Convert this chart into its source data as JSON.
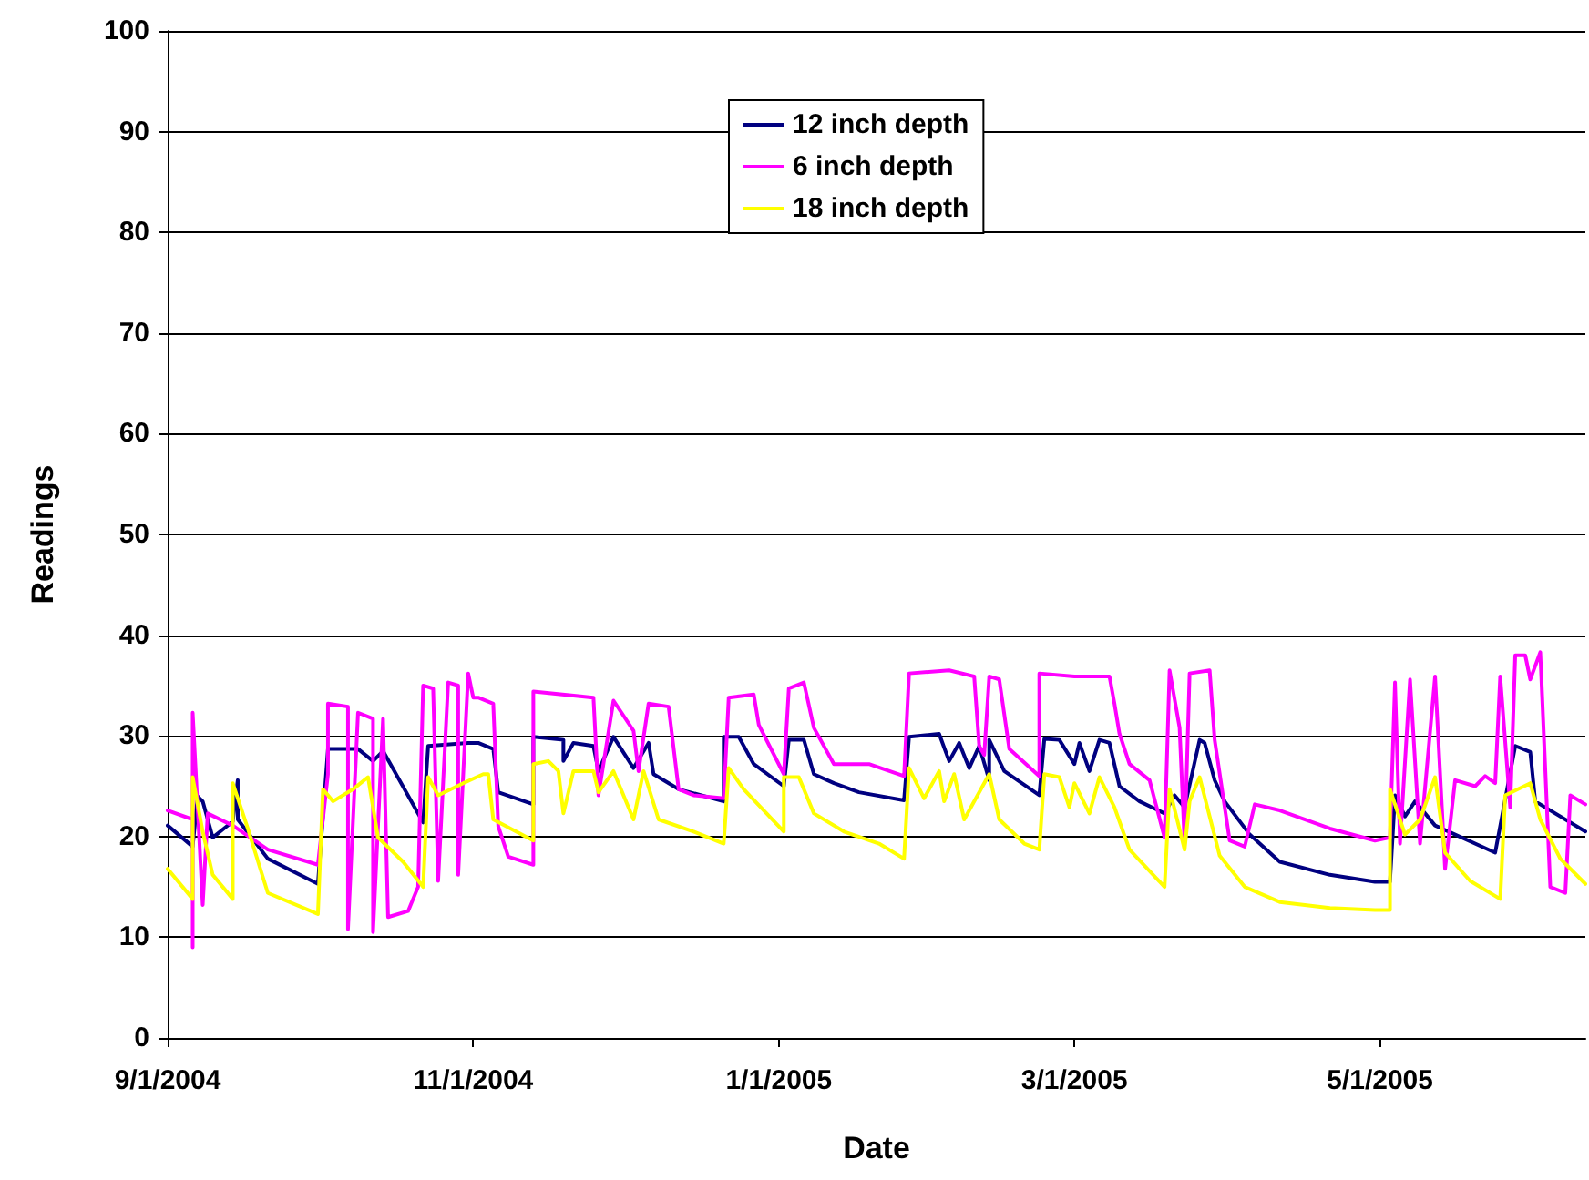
{
  "chart_data": {
    "type": "line",
    "xlabel": "Date",
    "ylabel": "Readings",
    "xlim": [
      "2004-09-01",
      "2005-06-11"
    ],
    "xticks": [
      {
        "value": "2004-09-01",
        "label": "9/1/2004"
      },
      {
        "value": "2004-11-01",
        "label": "11/1/2004"
      },
      {
        "value": "2005-01-01",
        "label": "1/1/2005"
      },
      {
        "value": "2005-03-01",
        "label": "3/1/2005"
      },
      {
        "value": "2005-05-01",
        "label": "5/1/2005"
      }
    ],
    "ylim": [
      0,
      100
    ],
    "yticks": [
      0,
      10,
      20,
      30,
      40,
      50,
      60,
      70,
      80,
      90,
      100
    ],
    "grid": "y",
    "legend": "top",
    "marker": "none",
    "line_style": "solid",
    "series": [
      {
        "name": "12 inch depth",
        "color": "#000080",
        "x": [
          "2004-09-01",
          "2004-09-06",
          "2004-09-07",
          "2004-09-08",
          "2004-09-10",
          "2004-09-14",
          "2004-09-15",
          "2004-09-15",
          "2004-09-21",
          "2004-10-01",
          "2004-10-03",
          "2004-10-09",
          "2004-10-12",
          "2004-10-14",
          "2004-10-22",
          "2004-10-23",
          "2004-10-31",
          "2004-11-02",
          "2004-11-05",
          "2004-11-06",
          "2004-11-13",
          "2004-11-13",
          "2004-11-19",
          "2004-11-19",
          "2004-11-21",
          "2004-11-25",
          "2004-11-26",
          "2004-11-29",
          "2004-12-03",
          "2004-12-06",
          "2004-12-07",
          "2004-12-12",
          "2004-12-21",
          "2004-12-21",
          "2004-12-24",
          "2004-12-27",
          "2005-01-02",
          "2005-01-03",
          "2005-01-06",
          "2005-01-08",
          "2005-01-12",
          "2005-01-17",
          "2005-01-26",
          "2005-01-27",
          "2005-02-02",
          "2005-02-04",
          "2005-02-06",
          "2005-02-08",
          "2005-02-10",
          "2005-02-12",
          "2005-02-12",
          "2005-02-15",
          "2005-02-22",
          "2005-02-23",
          "2005-02-26",
          "2005-03-01",
          "2005-03-02",
          "2005-03-04",
          "2005-03-06",
          "2005-03-08",
          "2005-03-10",
          "2005-03-14",
          "2005-03-19",
          "2005-03-21",
          "2005-03-23",
          "2005-03-26",
          "2005-03-27",
          "2005-03-29",
          "2005-03-31",
          "2005-04-05",
          "2005-04-11",
          "2005-04-21",
          "2005-04-30",
          "2005-05-03",
          "2005-05-04",
          "2005-05-06",
          "2005-05-08",
          "2005-05-12",
          "2005-05-24",
          "2005-05-28",
          "2005-05-31",
          "2005-06-01",
          "2005-06-11"
        ],
        "values": [
          21.1,
          19,
          24,
          23.5,
          19.9,
          21.5,
          25.6,
          21.7,
          17.8,
          15.3,
          28.7,
          28.7,
          27.5,
          28.5,
          21.4,
          29,
          29.3,
          29.3,
          28.7,
          24.4,
          23.2,
          29.9,
          29.6,
          27.5,
          29.3,
          29,
          26.5,
          29.9,
          26.8,
          29.3,
          26.2,
          24.7,
          23.5,
          29.9,
          29.9,
          27.2,
          25,
          29.6,
          29.6,
          26.2,
          25.3,
          24.4,
          23.6,
          29.9,
          30.2,
          27.5,
          29.3,
          26.8,
          29,
          25.6,
          29.6,
          26.5,
          24.1,
          29.7,
          29.6,
          27.2,
          29.3,
          26.5,
          29.6,
          29.3,
          25,
          23.5,
          22.3,
          24.1,
          22.9,
          29.6,
          29.3,
          25.6,
          23.5,
          20.2,
          17.5,
          16.2,
          15.5,
          15.5,
          24.1,
          22,
          23.5,
          21.1,
          18.4,
          29,
          28.4,
          23.5,
          20.5
        ]
      },
      {
        "name": "6 inch depth",
        "color": "#ff00ff",
        "x": [
          "2004-09-01",
          "2004-09-06",
          "2004-09-06",
          "2004-09-06",
          "2004-09-08",
          "2004-09-09",
          "2004-09-14",
          "2004-09-21",
          "2004-10-01",
          "2004-10-03",
          "2004-10-03",
          "2004-10-07",
          "2004-10-07",
          "2004-10-09",
          "2004-10-12",
          "2004-10-12",
          "2004-10-14",
          "2004-10-15",
          "2004-10-19",
          "2004-10-21",
          "2004-10-22",
          "2004-10-24",
          "2004-10-25",
          "2004-10-27",
          "2004-10-29",
          "2004-10-29",
          "2004-10-31",
          "2004-11-01",
          "2004-11-02",
          "2004-11-05",
          "2004-11-06",
          "2004-11-08",
          "2004-11-13",
          "2004-11-13",
          "2004-11-25",
          "2004-11-26",
          "2004-11-29",
          "2004-12-03",
          "2004-12-04",
          "2004-12-06",
          "2004-12-10",
          "2004-12-12",
          "2004-12-15",
          "2004-12-21",
          "2004-12-22",
          "2004-12-27",
          "2004-12-28",
          "2005-01-02",
          "2005-01-03",
          "2005-01-06",
          "2005-01-08",
          "2005-01-12",
          "2005-01-19",
          "2005-01-26",
          "2005-01-27",
          "2005-02-04",
          "2005-02-09",
          "2005-02-10",
          "2005-02-11",
          "2005-02-12",
          "2005-02-14",
          "2005-02-16",
          "2005-02-22",
          "2005-02-22",
          "2005-03-01",
          "2005-03-08",
          "2005-03-09",
          "2005-03-10",
          "2005-03-12",
          "2005-03-16",
          "2005-03-19",
          "2005-03-20",
          "2005-03-22",
          "2005-03-23",
          "2005-03-24",
          "2005-03-28",
          "2005-03-29",
          "2005-04-01",
          "2005-04-04",
          "2005-04-06",
          "2005-04-11",
          "2005-04-21",
          "2005-04-30",
          "2005-05-03",
          "2005-05-04",
          "2005-05-05",
          "2005-05-07",
          "2005-05-09",
          "2005-05-12",
          "2005-05-14",
          "2005-05-16",
          "2005-05-20",
          "2005-05-22",
          "2005-05-24",
          "2005-05-25",
          "2005-05-27",
          "2005-05-28",
          "2005-05-30",
          "2005-05-31",
          "2005-06-02",
          "2005-06-04",
          "2005-06-07",
          "2005-06-08",
          "2005-06-11"
        ],
        "values": [
          22.6,
          21.7,
          9,
          32.3,
          13.2,
          22.3,
          21.1,
          18.7,
          17.2,
          26.2,
          33.2,
          32.9,
          10.8,
          32.3,
          31.7,
          10.5,
          31.7,
          12,
          12.6,
          15,
          35,
          34.7,
          15.6,
          35.3,
          35,
          16.2,
          36.2,
          33.8,
          33.8,
          33.2,
          21,
          18,
          17.2,
          34.4,
          33.8,
          24.1,
          33.5,
          30.5,
          26.5,
          33.2,
          32.9,
          24.7,
          24.1,
          23.8,
          33.8,
          34.1,
          31.1,
          26.2,
          34.7,
          35.3,
          30.8,
          27.2,
          27.2,
          26,
          36.2,
          36.5,
          35.9,
          29,
          28.1,
          35.9,
          35.6,
          28.7,
          26,
          36.2,
          35.9,
          35.9,
          33.2,
          30.2,
          27.2,
          25.6,
          19.9,
          36.5,
          30.8,
          19.3,
          36.2,
          36.5,
          29.6,
          19.6,
          19,
          23.2,
          22.6,
          20.8,
          19.6,
          19.9,
          35.3,
          19.3,
          35.6,
          19.3,
          35.9,
          16.8,
          25.6,
          25,
          26,
          25.3,
          35.9,
          22.9,
          38,
          38,
          35.6,
          38.3,
          15,
          14.4,
          24.1,
          23.2
        ]
      },
      {
        "name": "18 inch depth",
        "color": "#ffff00",
        "x": [
          "2004-09-01",
          "2004-09-06",
          "2004-09-06",
          "2004-09-08",
          "2004-09-10",
          "2004-09-14",
          "2004-09-14",
          "2004-09-17",
          "2004-09-21",
          "2004-10-01",
          "2004-10-02",
          "2004-10-04",
          "2004-10-08",
          "2004-10-11",
          "2004-10-13",
          "2004-10-18",
          "2004-10-22",
          "2004-10-23",
          "2004-10-25",
          "2004-10-30",
          "2004-11-03",
          "2004-11-04",
          "2004-11-05",
          "2004-11-13",
          "2004-11-13",
          "2004-11-16",
          "2004-11-18",
          "2004-11-19",
          "2004-11-21",
          "2004-11-25",
          "2004-11-26",
          "2004-11-29",
          "2004-12-03",
          "2004-12-05",
          "2004-12-08",
          "2004-12-15",
          "2004-12-21",
          "2004-12-22",
          "2004-12-25",
          "2005-01-02",
          "2005-01-02",
          "2005-01-05",
          "2005-01-08",
          "2005-01-14",
          "2005-01-21",
          "2005-01-26",
          "2005-01-27",
          "2005-01-30",
          "2005-02-02",
          "2005-02-03",
          "2005-02-05",
          "2005-02-07",
          "2005-02-12",
          "2005-02-14",
          "2005-02-19",
          "2005-02-22",
          "2005-02-23",
          "2005-02-26",
          "2005-02-28",
          "2005-03-01",
          "2005-03-04",
          "2005-03-06",
          "2005-03-09",
          "2005-03-12",
          "2005-03-19",
          "2005-03-20",
          "2005-03-23",
          "2005-03-24",
          "2005-03-26",
          "2005-03-30",
          "2005-04-04",
          "2005-04-11",
          "2005-04-21",
          "2005-04-30",
          "2005-05-03",
          "2005-05-03",
          "2005-05-06",
          "2005-05-09",
          "2005-05-12",
          "2005-05-14",
          "2005-05-19",
          "2005-05-25",
          "2005-05-26",
          "2005-05-31",
          "2005-06-02",
          "2005-06-06",
          "2005-06-11"
        ],
        "values": [
          16.8,
          13.8,
          25.9,
          20.5,
          16.2,
          13.8,
          25.3,
          20.8,
          14.4,
          12.3,
          24.7,
          23.5,
          24.7,
          25.9,
          19.9,
          17.5,
          15,
          25.9,
          24.1,
          25.3,
          26.2,
          26.2,
          21.7,
          19.6,
          27.2,
          27.5,
          26.5,
          22.3,
          26.5,
          26.5,
          24.4,
          26.5,
          21.7,
          26.5,
          21.7,
          20.5,
          19.3,
          26.8,
          24.7,
          20.5,
          25.9,
          25.9,
          22.3,
          20.5,
          19.3,
          17.8,
          26.8,
          23.8,
          26.5,
          23.5,
          26.2,
          21.7,
          26.2,
          21.7,
          19.3,
          18.7,
          26.2,
          25.9,
          22.9,
          25.3,
          22.3,
          25.9,
          22.9,
          18.7,
          15,
          24.7,
          18.7,
          23.5,
          25.9,
          18.1,
          15,
          13.5,
          12.9,
          12.7,
          12.7,
          24.7,
          20.2,
          21.7,
          25.9,
          18.4,
          15.6,
          13.8,
          24.1,
          25.3,
          21.7,
          17.8,
          15.3
        ]
      }
    ]
  }
}
